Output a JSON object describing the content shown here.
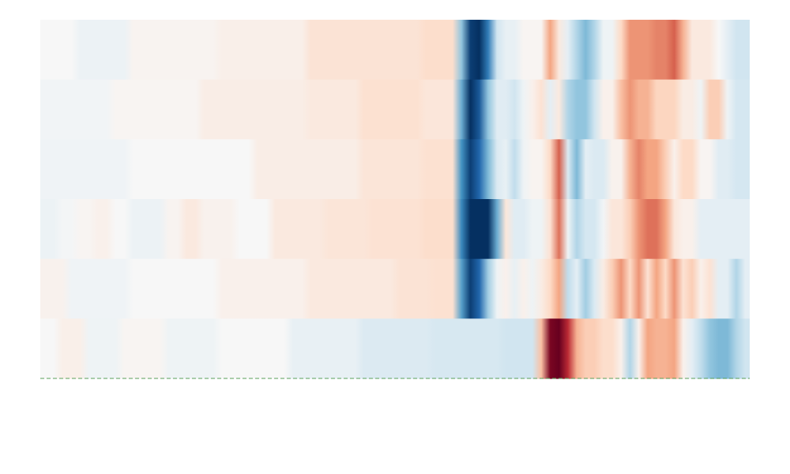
{
  "chart_data": {
    "type": "heatmap",
    "title": "",
    "xlabel": "",
    "ylabel": "",
    "colormap": "RdBu_r",
    "color_range": [
      -1,
      1
    ],
    "cells_per_row": 80,
    "baseline": {
      "style": "dashed",
      "color": "#5aa05a"
    },
    "rows": [
      {
        "segments": [
          {
            "from": 0,
            "to": 4,
            "value": 0.0
          },
          {
            "from": 4,
            "to": 10,
            "value": -0.06
          },
          {
            "from": 10,
            "to": 20,
            "value": 0.03
          },
          {
            "from": 20,
            "to": 30,
            "value": 0.06
          },
          {
            "from": 30,
            "to": 43,
            "value": 0.14
          },
          {
            "from": 43,
            "to": 47,
            "value": 0.18
          },
          {
            "from": 47,
            "to": 48,
            "value": -0.4
          },
          {
            "from": 48,
            "to": 49,
            "value": -0.95
          },
          {
            "from": 49,
            "to": 50,
            "value": -1.0
          },
          {
            "from": 50,
            "to": 51,
            "value": -0.7
          },
          {
            "from": 51,
            "to": 52,
            "value": -0.2
          },
          {
            "from": 52,
            "to": 54,
            "value": -0.08
          },
          {
            "from": 54,
            "to": 57,
            "value": 0.02
          },
          {
            "from": 57,
            "to": 58,
            "value": 0.4
          },
          {
            "from": 58,
            "to": 59,
            "value": 0.1
          },
          {
            "from": 59,
            "to": 60,
            "value": -0.1
          },
          {
            "from": 60,
            "to": 61,
            "value": -0.3
          },
          {
            "from": 61,
            "to": 62,
            "value": -0.45
          },
          {
            "from": 62,
            "to": 63,
            "value": -0.3
          },
          {
            "from": 63,
            "to": 65,
            "value": -0.05
          },
          {
            "from": 65,
            "to": 66,
            "value": 0.2
          },
          {
            "from": 66,
            "to": 69,
            "value": 0.45
          },
          {
            "from": 69,
            "to": 71,
            "value": 0.5
          },
          {
            "from": 71,
            "to": 72,
            "value": 0.6
          },
          {
            "from": 72,
            "to": 73,
            "value": 0.35
          },
          {
            "from": 73,
            "to": 76,
            "value": 0.1
          },
          {
            "from": 76,
            "to": 77,
            "value": 0.0
          },
          {
            "from": 77,
            "to": 78,
            "value": -0.1
          },
          {
            "from": 78,
            "to": 80,
            "value": -0.2
          }
        ]
      },
      {
        "segments": [
          {
            "from": 0,
            "to": 8,
            "value": -0.03
          },
          {
            "from": 8,
            "to": 18,
            "value": 0.02
          },
          {
            "from": 18,
            "to": 30,
            "value": 0.07
          },
          {
            "from": 30,
            "to": 36,
            "value": 0.1
          },
          {
            "from": 36,
            "to": 43,
            "value": 0.16
          },
          {
            "from": 43,
            "to": 47,
            "value": 0.12
          },
          {
            "from": 47,
            "to": 48,
            "value": -0.5
          },
          {
            "from": 48,
            "to": 49,
            "value": -1.0
          },
          {
            "from": 49,
            "to": 50,
            "value": -0.85
          },
          {
            "from": 50,
            "to": 51,
            "value": -0.4
          },
          {
            "from": 51,
            "to": 53,
            "value": -0.12
          },
          {
            "from": 53,
            "to": 54,
            "value": -0.2
          },
          {
            "from": 54,
            "to": 55,
            "value": -0.05
          },
          {
            "from": 55,
            "to": 56,
            "value": 0.05
          },
          {
            "from": 56,
            "to": 57,
            "value": 0.15
          },
          {
            "from": 57,
            "to": 58,
            "value": -0.1
          },
          {
            "from": 58,
            "to": 59,
            "value": 0.1
          },
          {
            "from": 59,
            "to": 60,
            "value": -0.3
          },
          {
            "from": 60,
            "to": 62,
            "value": -0.4
          },
          {
            "from": 62,
            "to": 63,
            "value": -0.2
          },
          {
            "from": 63,
            "to": 65,
            "value": 0.05
          },
          {
            "from": 65,
            "to": 66,
            "value": 0.3
          },
          {
            "from": 66,
            "to": 67,
            "value": 0.45
          },
          {
            "from": 67,
            "to": 69,
            "value": 0.35
          },
          {
            "from": 69,
            "to": 72,
            "value": 0.22
          },
          {
            "from": 72,
            "to": 74,
            "value": 0.08
          },
          {
            "from": 74,
            "to": 75,
            "value": -0.05
          },
          {
            "from": 75,
            "to": 77,
            "value": 0.25
          },
          {
            "from": 77,
            "to": 78,
            "value": -0.05
          },
          {
            "from": 78,
            "to": 80,
            "value": -0.18
          }
        ]
      },
      {
        "segments": [
          {
            "from": 0,
            "to": 10,
            "value": -0.04
          },
          {
            "from": 10,
            "to": 24,
            "value": 0.0
          },
          {
            "from": 24,
            "to": 36,
            "value": 0.07
          },
          {
            "from": 36,
            "to": 43,
            "value": 0.13
          },
          {
            "from": 43,
            "to": 47,
            "value": 0.16
          },
          {
            "from": 47,
            "to": 48,
            "value": -0.6
          },
          {
            "from": 48,
            "to": 49,
            "value": -0.95
          },
          {
            "from": 49,
            "to": 50,
            "value": -0.8
          },
          {
            "from": 50,
            "to": 51,
            "value": -0.45
          },
          {
            "from": 51,
            "to": 52,
            "value": -0.15
          },
          {
            "from": 52,
            "to": 53,
            "value": -0.08
          },
          {
            "from": 53,
            "to": 54,
            "value": -0.25
          },
          {
            "from": 54,
            "to": 55,
            "value": -0.05
          },
          {
            "from": 55,
            "to": 57,
            "value": 0.03
          },
          {
            "from": 57,
            "to": 58,
            "value": 0.2
          },
          {
            "from": 58,
            "to": 59,
            "value": 0.6
          },
          {
            "from": 59,
            "to": 60,
            "value": -0.15
          },
          {
            "from": 60,
            "to": 61,
            "value": -0.45
          },
          {
            "from": 61,
            "to": 62,
            "value": -0.1
          },
          {
            "from": 62,
            "to": 64,
            "value": -0.15
          },
          {
            "from": 64,
            "to": 66,
            "value": 0.04
          },
          {
            "from": 66,
            "to": 67,
            "value": 0.35
          },
          {
            "from": 67,
            "to": 68,
            "value": 0.5
          },
          {
            "from": 68,
            "to": 70,
            "value": 0.4
          },
          {
            "from": 70,
            "to": 71,
            "value": 0.25
          },
          {
            "from": 71,
            "to": 72,
            "value": 0.05
          },
          {
            "from": 72,
            "to": 74,
            "value": 0.2
          },
          {
            "from": 74,
            "to": 76,
            "value": 0.02
          },
          {
            "from": 76,
            "to": 78,
            "value": -0.12
          },
          {
            "from": 78,
            "to": 80,
            "value": -0.18
          }
        ]
      },
      {
        "segments": [
          {
            "from": 0,
            "to": 2,
            "value": -0.06
          },
          {
            "from": 2,
            "to": 4,
            "value": -0.02
          },
          {
            "from": 4,
            "to": 6,
            "value": 0.02
          },
          {
            "from": 6,
            "to": 8,
            "value": 0.05
          },
          {
            "from": 8,
            "to": 10,
            "value": 0.0
          },
          {
            "from": 10,
            "to": 14,
            "value": -0.06
          },
          {
            "from": 14,
            "to": 16,
            "value": 0.03
          },
          {
            "from": 16,
            "to": 18,
            "value": 0.1
          },
          {
            "from": 18,
            "to": 22,
            "value": 0.04
          },
          {
            "from": 22,
            "to": 26,
            "value": 0.0
          },
          {
            "from": 26,
            "to": 32,
            "value": 0.1
          },
          {
            "from": 32,
            "to": 37,
            "value": 0.13
          },
          {
            "from": 37,
            "to": 43,
            "value": 0.15
          },
          {
            "from": 43,
            "to": 47,
            "value": 0.18
          },
          {
            "from": 47,
            "to": 48,
            "value": -0.65
          },
          {
            "from": 48,
            "to": 51,
            "value": -1.0
          },
          {
            "from": 51,
            "to": 52,
            "value": -0.5
          },
          {
            "from": 52,
            "to": 53,
            "value": 0.12
          },
          {
            "from": 53,
            "to": 55,
            "value": -0.12
          },
          {
            "from": 55,
            "to": 57,
            "value": -0.05
          },
          {
            "from": 57,
            "to": 58,
            "value": 0.15
          },
          {
            "from": 58,
            "to": 59,
            "value": 0.55
          },
          {
            "from": 59,
            "to": 60,
            "value": -0.05
          },
          {
            "from": 60,
            "to": 61,
            "value": -0.3
          },
          {
            "from": 61,
            "to": 63,
            "value": -0.18
          },
          {
            "from": 63,
            "to": 64,
            "value": -0.03
          },
          {
            "from": 64,
            "to": 66,
            "value": 0.12
          },
          {
            "from": 66,
            "to": 67,
            "value": 0.25
          },
          {
            "from": 67,
            "to": 68,
            "value": 0.45
          },
          {
            "from": 68,
            "to": 70,
            "value": 0.55
          },
          {
            "from": 70,
            "to": 71,
            "value": 0.4
          },
          {
            "from": 71,
            "to": 72,
            "value": 0.12
          },
          {
            "from": 72,
            "to": 74,
            "value": 0.05
          },
          {
            "from": 74,
            "to": 80,
            "value": -0.1
          }
        ]
      },
      {
        "segments": [
          {
            "from": 0,
            "to": 3,
            "value": 0.04
          },
          {
            "from": 3,
            "to": 10,
            "value": -0.04
          },
          {
            "from": 10,
            "to": 20,
            "value": 0.0
          },
          {
            "from": 20,
            "to": 30,
            "value": 0.05
          },
          {
            "from": 30,
            "to": 40,
            "value": 0.1
          },
          {
            "from": 40,
            "to": 44,
            "value": 0.14
          },
          {
            "from": 44,
            "to": 47,
            "value": 0.16
          },
          {
            "from": 47,
            "to": 48,
            "value": -0.55
          },
          {
            "from": 48,
            "to": 49,
            "value": -0.95
          },
          {
            "from": 49,
            "to": 50,
            "value": -0.8
          },
          {
            "from": 50,
            "to": 51,
            "value": -0.35
          },
          {
            "from": 51,
            "to": 52,
            "value": -0.05
          },
          {
            "from": 52,
            "to": 53,
            "value": 0.05
          },
          {
            "from": 53,
            "to": 54,
            "value": -0.08
          },
          {
            "from": 54,
            "to": 55,
            "value": 0.05
          },
          {
            "from": 55,
            "to": 56,
            "value": -0.05
          },
          {
            "from": 56,
            "to": 57,
            "value": 0.08
          },
          {
            "from": 57,
            "to": 58,
            "value": 0.2
          },
          {
            "from": 58,
            "to": 59,
            "value": 0.4
          },
          {
            "from": 59,
            "to": 60,
            "value": -0.25
          },
          {
            "from": 60,
            "to": 61,
            "value": -0.1
          },
          {
            "from": 61,
            "to": 62,
            "value": -0.35
          },
          {
            "from": 62,
            "to": 63,
            "value": -0.15
          },
          {
            "from": 63,
            "to": 64,
            "value": 0.08
          },
          {
            "from": 64,
            "to": 65,
            "value": 0.25
          },
          {
            "from": 65,
            "to": 66,
            "value": 0.45
          },
          {
            "from": 66,
            "to": 67,
            "value": 0.2
          },
          {
            "from": 67,
            "to": 68,
            "value": 0.45
          },
          {
            "from": 68,
            "to": 69,
            "value": 0.15
          },
          {
            "from": 69,
            "to": 70,
            "value": 0.4
          },
          {
            "from": 70,
            "to": 71,
            "value": 0.2
          },
          {
            "from": 71,
            "to": 72,
            "value": 0.45
          },
          {
            "from": 72,
            "to": 73,
            "value": 0.15
          },
          {
            "from": 73,
            "to": 74,
            "value": 0.25
          },
          {
            "from": 74,
            "to": 75,
            "value": 0.05
          },
          {
            "from": 75,
            "to": 76,
            "value": 0.15
          },
          {
            "from": 76,
            "to": 78,
            "value": -0.1
          },
          {
            "from": 78,
            "to": 79,
            "value": -0.3
          },
          {
            "from": 79,
            "to": 80,
            "value": -0.1
          }
        ]
      },
      {
        "segments": [
          {
            "from": 0,
            "to": 2,
            "value": 0.0
          },
          {
            "from": 2,
            "to": 5,
            "value": 0.06
          },
          {
            "from": 5,
            "to": 9,
            "value": -0.05
          },
          {
            "from": 9,
            "to": 14,
            "value": 0.02
          },
          {
            "from": 14,
            "to": 20,
            "value": -0.05
          },
          {
            "from": 20,
            "to": 28,
            "value": 0.0
          },
          {
            "from": 28,
            "to": 36,
            "value": -0.08
          },
          {
            "from": 36,
            "to": 44,
            "value": -0.14
          },
          {
            "from": 44,
            "to": 52,
            "value": -0.17
          },
          {
            "from": 52,
            "to": 56,
            "value": -0.2
          },
          {
            "from": 56,
            "to": 57,
            "value": 0.3
          },
          {
            "from": 57,
            "to": 58,
            "value": 0.95
          },
          {
            "from": 58,
            "to": 59,
            "value": 1.0
          },
          {
            "from": 59,
            "to": 60,
            "value": 0.75
          },
          {
            "from": 60,
            "to": 61,
            "value": 0.35
          },
          {
            "from": 61,
            "to": 63,
            "value": 0.25
          },
          {
            "from": 63,
            "to": 65,
            "value": 0.18
          },
          {
            "from": 65,
            "to": 66,
            "value": 0.05
          },
          {
            "from": 66,
            "to": 67,
            "value": -0.3
          },
          {
            "from": 67,
            "to": 68,
            "value": 0.05
          },
          {
            "from": 68,
            "to": 69,
            "value": 0.4
          },
          {
            "from": 69,
            "to": 71,
            "value": 0.35
          },
          {
            "from": 71,
            "to": 72,
            "value": 0.4
          },
          {
            "from": 72,
            "to": 73,
            "value": 0.05
          },
          {
            "from": 73,
            "to": 74,
            "value": -0.1
          },
          {
            "from": 74,
            "to": 75,
            "value": -0.25
          },
          {
            "from": 75,
            "to": 76,
            "value": -0.4
          },
          {
            "from": 76,
            "to": 78,
            "value": -0.45
          },
          {
            "from": 78,
            "to": 79,
            "value": -0.3
          },
          {
            "from": 79,
            "to": 80,
            "value": -0.2
          }
        ]
      }
    ]
  }
}
